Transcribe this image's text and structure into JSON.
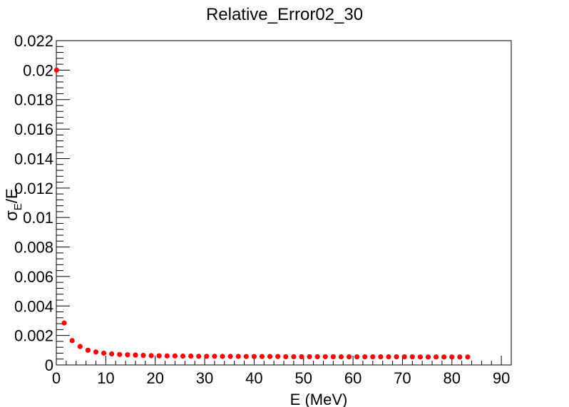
{
  "chart_data": {
    "type": "scatter",
    "title": "Relative_Error02_30",
    "xlabel": "E (MeV)",
    "ylabel": {
      "symbol": "σ",
      "subscript": "E",
      "suffix": "/E"
    },
    "xlim": [
      0,
      92
    ],
    "ylim": [
      0,
      0.022
    ],
    "x_ticks": [
      "0",
      "10",
      "20",
      "30",
      "40",
      "50",
      "60",
      "70",
      "80",
      "90"
    ],
    "y_ticks": [
      "0",
      "0.002",
      "0.004",
      "0.006",
      "0.008",
      "0.01",
      "0.012",
      "0.014",
      "0.016",
      "0.018",
      "0.02",
      "0.022"
    ],
    "grid": false,
    "marker_color": "#ff0000",
    "series": [
      {
        "x": [
          0.05,
          1.6,
          3.2,
          4.8,
          6.4,
          8.0,
          9.6,
          11.2,
          12.8,
          14.4,
          16.0,
          17.6,
          19.2,
          20.8,
          22.4,
          24.0,
          25.6,
          27.2,
          28.8,
          30.4,
          32.0,
          33.6,
          35.2,
          36.8,
          38.4,
          40.0,
          41.6,
          43.2,
          44.8,
          46.4,
          48.0,
          49.6,
          51.2,
          52.8,
          54.4,
          56.0,
          57.6,
          59.2,
          60.8,
          62.4,
          64.0,
          65.6,
          67.2,
          68.8,
          70.4,
          72.0,
          73.6,
          75.2,
          76.8,
          78.4,
          80.0,
          81.6,
          83.2
        ],
        "y": [
          0.02,
          0.00285,
          0.00165,
          0.00125,
          0.001,
          0.00088,
          0.0008,
          0.00075,
          0.00071,
          0.00069,
          0.00067,
          0.00065,
          0.00063,
          0.00062,
          0.00061,
          0.00061,
          0.0006,
          0.0006,
          0.00059,
          0.00059,
          0.00059,
          0.00058,
          0.00058,
          0.00058,
          0.00057,
          0.00057,
          0.00057,
          0.00057,
          0.00057,
          0.00056,
          0.00056,
          0.00056,
          0.00056,
          0.00056,
          0.00056,
          0.00056,
          0.00055,
          0.00055,
          0.00055,
          0.00055,
          0.00055,
          0.00055,
          0.00055,
          0.00055,
          0.00055,
          0.00055,
          0.00054,
          0.00054,
          0.00054,
          0.00054,
          0.00054,
          0.00054,
          0.00054
        ]
      }
    ]
  }
}
